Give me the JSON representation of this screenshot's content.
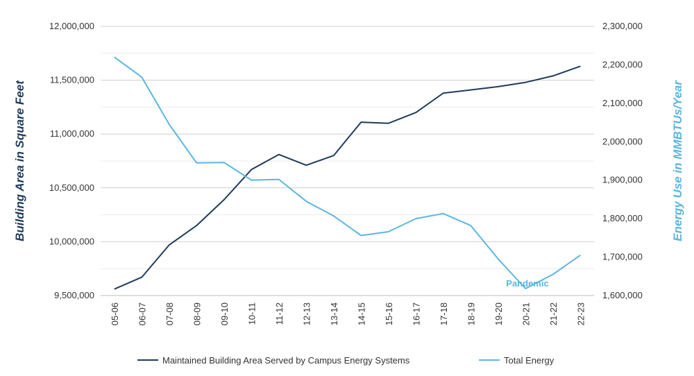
{
  "chart_data": {
    "type": "line",
    "title": "",
    "categories": [
      "05-06",
      "06-07",
      "07-08",
      "08-09",
      "09-10",
      "10-11",
      "11-12",
      "12-13",
      "13-14",
      "14-15",
      "15-16",
      "16-17",
      "17-18",
      "18-19",
      "19-20",
      "20-21",
      "21-22",
      "22-23"
    ],
    "xlabel": "",
    "ylabel": "Building Area in Square Feet",
    "ylabel_right": "Energy Use in MMBTUs/Year",
    "ylim": [
      9500000,
      12000000
    ],
    "ylim_right": [
      1600000,
      2300000
    ],
    "yticks": [
      "9,500,000",
      "10,000,000",
      "10,500,000",
      "11,000,000",
      "11,500,000",
      "12,000,000"
    ],
    "yticks_right": [
      "1,600,000",
      "1,700,000",
      "1,800,000",
      "1,900,000",
      "2,000,000",
      "2,100,000",
      "2,200,000",
      "2,300,000"
    ],
    "grid": true,
    "legend_position": "bottom",
    "annotation": "Pandemic",
    "colors": {
      "building": "#1f3b5a",
      "energy": "#5bb6e0"
    },
    "series": [
      {
        "name": "Maintained Building Area Served by Campus Energy Systems",
        "axis": "left",
        "values": [
          9560000,
          9670000,
          9970000,
          10150000,
          10390000,
          10670000,
          10810000,
          10710000,
          10800000,
          11110000,
          11100000,
          11200000,
          11380000,
          11410000,
          11440000,
          11480000,
          11540000,
          11630000
        ]
      },
      {
        "name": "Total Energy",
        "axis": "right",
        "values": [
          2220000,
          2168000,
          2045000,
          1945000,
          1946000,
          1900000,
          1902000,
          1845000,
          1807000,
          1756000,
          1766000,
          1800000,
          1813000,
          1782000,
          1695000,
          1618000,
          1655000,
          1705000
        ]
      }
    ]
  }
}
